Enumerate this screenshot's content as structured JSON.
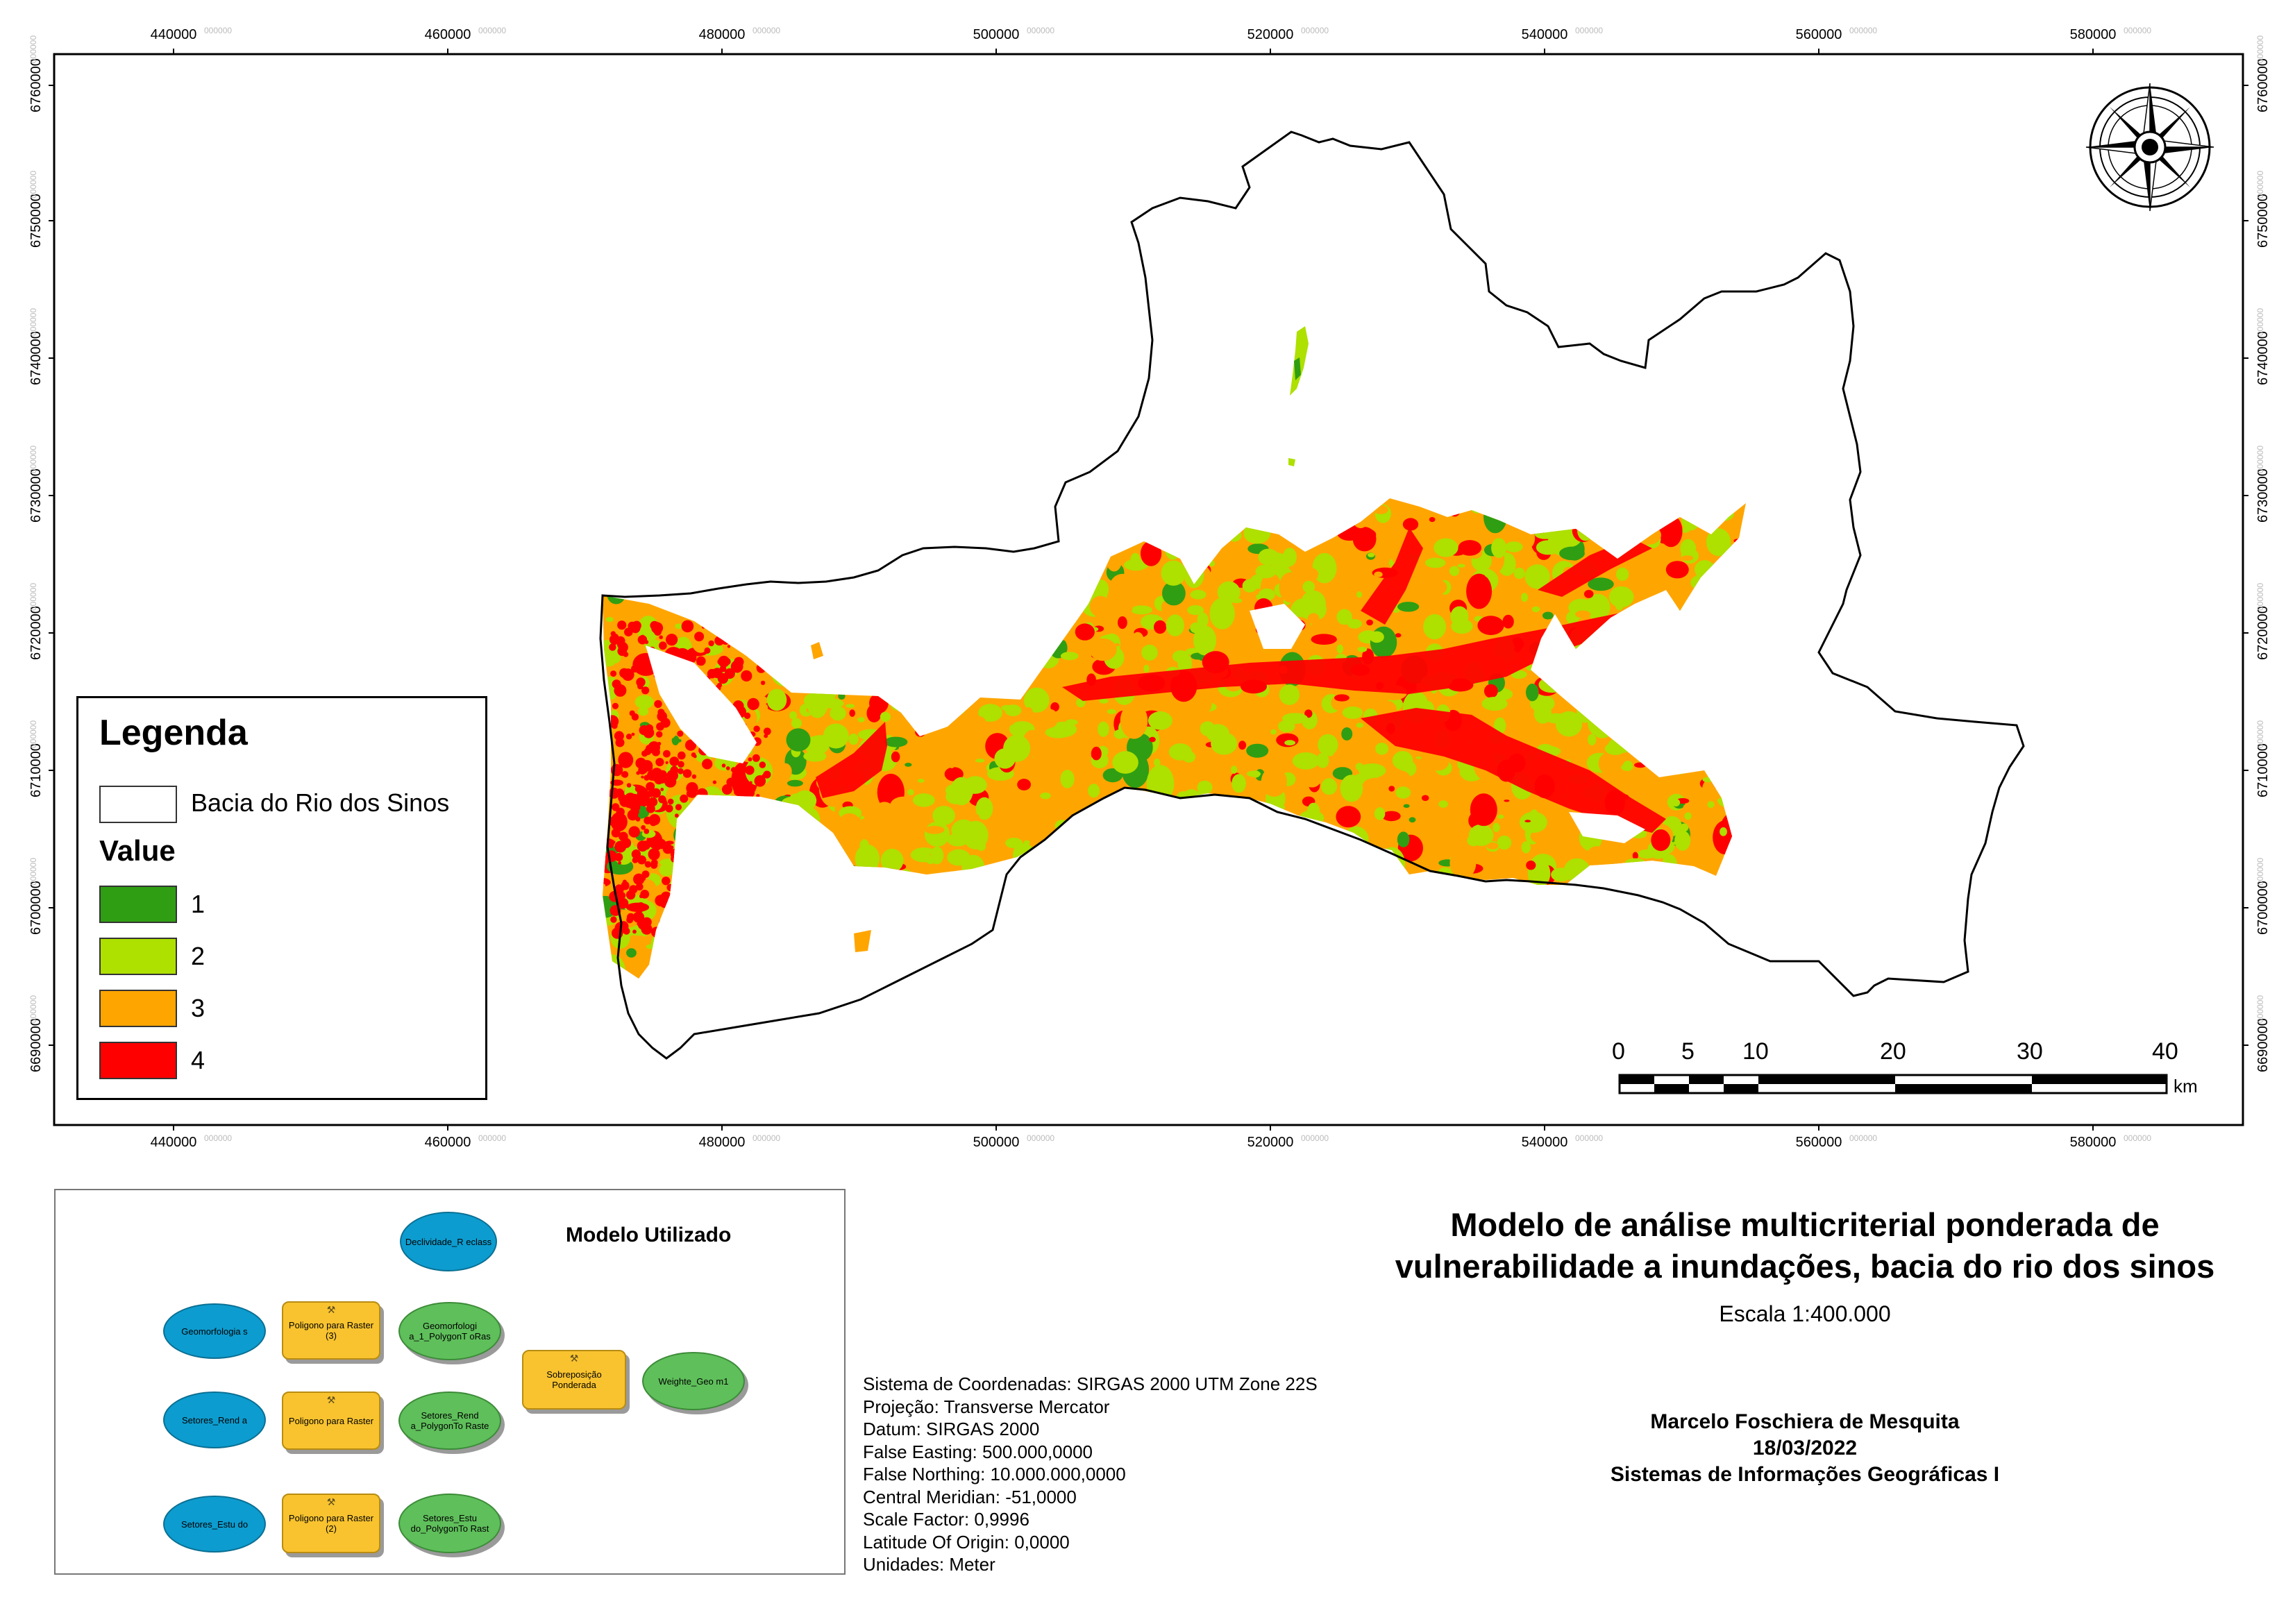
{
  "map": {
    "x_ticks": [
      {
        "label": "440000",
        "sup": "000000"
      },
      {
        "label": "460000",
        "sup": "000000"
      },
      {
        "label": "480000",
        "sup": "000000"
      },
      {
        "label": "500000",
        "sup": "000000"
      },
      {
        "label": "520000",
        "sup": "000000"
      },
      {
        "label": "540000",
        "sup": "000000"
      },
      {
        "label": "560000",
        "sup": "000000"
      },
      {
        "label": "580000",
        "sup": "000000"
      }
    ],
    "y_ticks": [
      {
        "label": "6760000",
        "sup": "000000"
      },
      {
        "label": "6750000",
        "sup": "000000"
      },
      {
        "label": "6740000",
        "sup": "000000"
      },
      {
        "label": "6730000",
        "sup": "000000"
      },
      {
        "label": "6720000",
        "sup": "000000"
      },
      {
        "label": "6710000",
        "sup": "000000"
      },
      {
        "label": "6700000",
        "sup": "000000"
      },
      {
        "label": "6690000",
        "sup": "000000"
      }
    ],
    "north_arrow_icon": "compass-rose-icon",
    "class_colors": {
      "1": "#2f9e12",
      "2": "#aee000",
      "3": "#ffa500",
      "4": "#ff0000"
    }
  },
  "legend": {
    "title": "Legenda",
    "basin_label": "Bacia do Rio dos Sinos",
    "value_title": "Value",
    "items": [
      {
        "label": "1",
        "color": "#2f9e12"
      },
      {
        "label": "2",
        "color": "#aee000"
      },
      {
        "label": "3",
        "color": "#ffa500"
      },
      {
        "label": "4",
        "color": "#ff0000"
      }
    ]
  },
  "scale_bar": {
    "labels": [
      "0",
      "5",
      "10",
      "20",
      "30",
      "40"
    ],
    "unit": "km"
  },
  "model": {
    "title": "Modelo Utilizado",
    "nodes": {
      "declividade": "Declividade_R eclass",
      "geomorfologia": "Geomorfologia s",
      "poligono_raster_3": "Poligono para Raster (3)",
      "geomorfologia_raster": "Geomorfologi a_1_PolygonT oRas",
      "setores_renda": "Setores_Rend a",
      "poligono_raster": "Poligono para Raster",
      "setores_renda_raster": "Setores_Rend a_PolygonTo Raste",
      "setores_estudo": "Setores_Estu do",
      "poligono_raster_2": "Poligono para Raster (2)",
      "setores_estudo_raster": "Setores_Estu do_PolygonTo Rast",
      "sobreposicao": "Sobreposição Ponderada",
      "weighted": "Weighte_Geo m1"
    }
  },
  "title": {
    "line1": "Modelo de análise multicriterial ponderada de",
    "line2": "vulnerabilidade a inundações, bacia do rio dos sinos",
    "scale": "Escala 1:400.000"
  },
  "crs": [
    "Sistema de Coordenadas: SIRGAS 2000 UTM Zone 22S",
    "Projeção: Transverse Mercator",
    "Datum: SIRGAS 2000",
    "False Easting: 500.000,0000",
    "False Northing: 10.000.000,0000",
    "Central Meridian: -51,0000",
    "Scale Factor: 0,9996",
    "Latitude Of Origin: 0,0000",
    "Unidades: Meter"
  ],
  "author": {
    "name": "Marcelo Foschiera de Mesquita",
    "date": "18/03/2022",
    "course": "Sistemas de Informações Geográficas I"
  }
}
